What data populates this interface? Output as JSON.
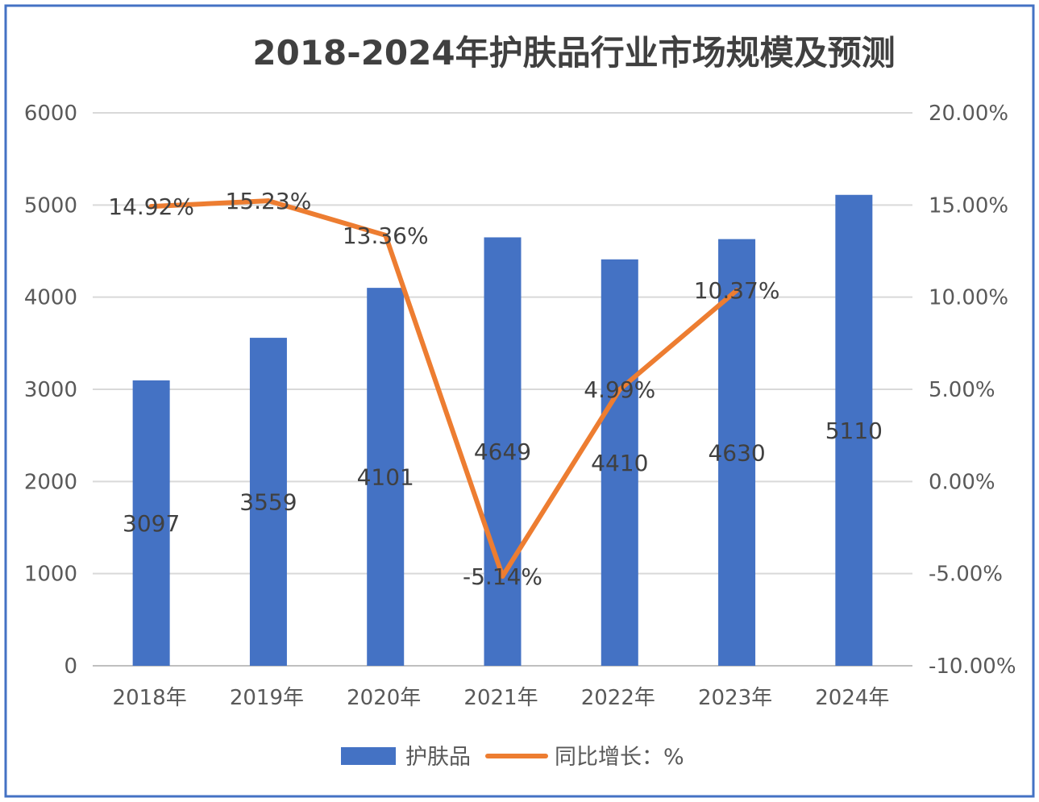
{
  "chart_data": {
    "type": "bar+line",
    "title": "2018-2024年护肤品行业市场规模及预测",
    "categories": [
      "2018年",
      "2019年",
      "2020年",
      "2021年",
      "2022年",
      "2023年",
      "2024年"
    ],
    "series": [
      {
        "name": "护肤品",
        "type": "bar",
        "axis": "left",
        "values": [
          3097,
          3559,
          4101,
          4649,
          4410,
          4630,
          5110
        ],
        "color": "#4472C4"
      },
      {
        "name": "同比增长：%",
        "type": "line",
        "axis": "right",
        "values": [
          14.92,
          15.23,
          13.36,
          -5.14,
          4.99,
          10.37,
          null
        ],
        "labels": [
          "14.92%",
          "15.23%",
          "13.36%",
          "-5.14%",
          "4.99%",
          "10.37%",
          ""
        ],
        "color": "#ED7D31"
      }
    ],
    "y_left": {
      "range": [
        0,
        6000
      ],
      "ticks": [
        "0",
        "1000",
        "2000",
        "3000",
        "4000",
        "5000",
        "6000"
      ]
    },
    "y_right": {
      "range": [
        -10,
        20
      ],
      "ticks": [
        "-10.00%",
        "-5.00%",
        "0.00%",
        "5.00%",
        "10.00%",
        "15.00%",
        "20.00%"
      ]
    },
    "grid": true,
    "legend": "bottom",
    "border_color": "#4472C4"
  }
}
